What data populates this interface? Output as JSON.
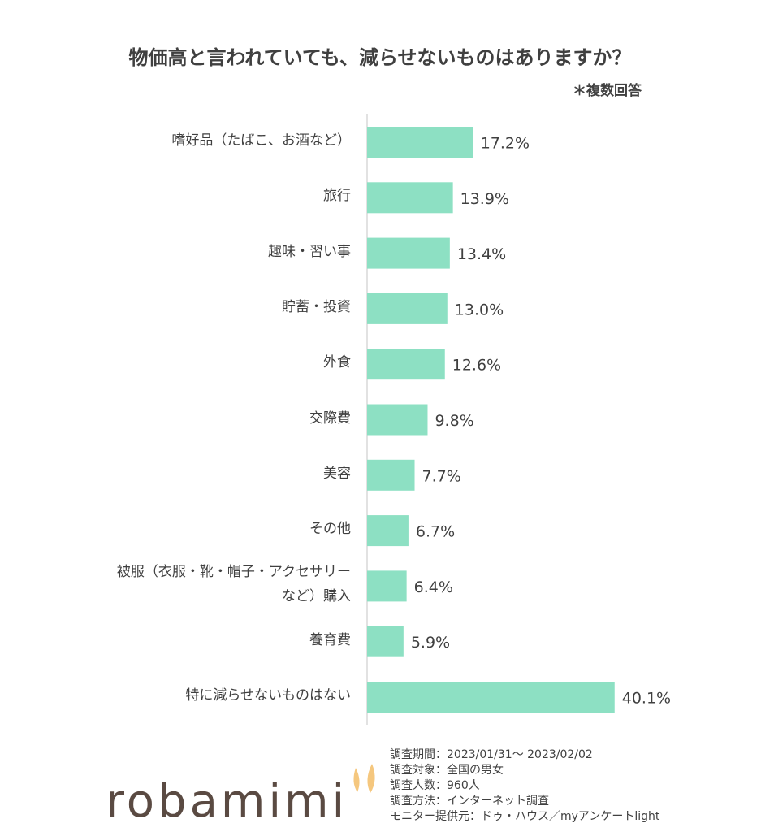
{
  "chart_data": {
    "type": "bar",
    "orientation": "horizontal",
    "title": "物価高と言われていても、減らせないものはありますか？",
    "subtitle": "＊複数回答",
    "categories": [
      "嗜好品（たばこ、お酒など）",
      "旅行",
      "趣味・習い事",
      "貯蓄・投資",
      "外食",
      "交際費",
      "美容",
      "その他",
      "被服（衣服・靴・帽子・アクセサリー\nなど）購入",
      "養育費",
      "特に減らせないものはない"
    ],
    "values": [
      17.2,
      13.9,
      13.4,
      13.0,
      12.6,
      9.8,
      7.7,
      6.7,
      6.4,
      5.9,
      40.1
    ],
    "value_labels": [
      "17.2%",
      "13.9%",
      "13.4%",
      "13.0%",
      "12.6%",
      "9.8%",
      "7.7%",
      "6.7%",
      "6.4%",
      "5.9%",
      "40.1%"
    ],
    "color": "#8de0c3",
    "xlim": [
      0,
      50
    ]
  },
  "footer": {
    "logo": "robamimi",
    "notes": [
      "調査期間：2023/01/31～ 2023/02/02",
      "調査対象：全国の男女",
      "調査人数：960人",
      "調査方法：インターネット調査",
      "モニター提供元：ドゥ・ハウス／myアンケートlight"
    ]
  }
}
